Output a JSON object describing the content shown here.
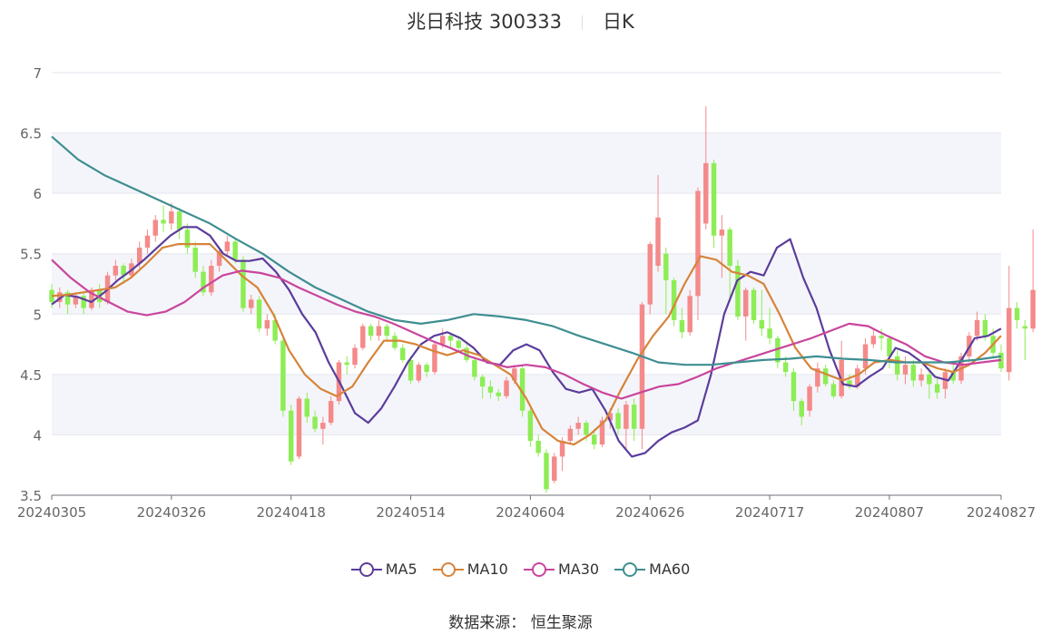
{
  "header": {
    "stock": "兆日科技 300333",
    "period": "日K"
  },
  "source": {
    "label": "数据来源：",
    "value": "恒生聚源"
  },
  "legend": [
    {
      "name": "MA5",
      "color": "#5b3d9c"
    },
    {
      "name": "MA10",
      "color": "#d6843a"
    },
    {
      "name": "MA30",
      "color": "#c9459c"
    },
    {
      "name": "MA60",
      "color": "#3f8e91"
    }
  ],
  "colors": {
    "up": "#f48a8a",
    "down": "#8ded55",
    "grid": "#e3e6ee",
    "band": "#f4f5fa",
    "axis": "#666666"
  },
  "chart_data": {
    "type": "candlestick",
    "ylim": [
      3.5,
      7
    ],
    "yticks": [
      "3.5",
      "4",
      "4.5",
      "5",
      "5.5",
      "6",
      "6.5",
      "7"
    ],
    "x_ticks": [
      {
        "label": "20240305",
        "index": 0
      },
      {
        "label": "20240326",
        "index": 15
      },
      {
        "label": "20240418",
        "index": 30
      },
      {
        "label": "20240514",
        "index": 45
      },
      {
        "label": "20240604",
        "index": 60
      },
      {
        "label": "20240626",
        "index": 75
      },
      {
        "label": "20240717",
        "index": 90
      },
      {
        "label": "20240807",
        "index": 105
      },
      {
        "label": "20240827",
        "index": 119
      }
    ],
    "count": 120,
    "candles": [
      [
        5.2,
        5.1,
        5.25,
        5.05
      ],
      [
        5.1,
        5.18,
        5.22,
        5.05
      ],
      [
        5.18,
        5.08,
        5.2,
        5.0
      ],
      [
        5.08,
        5.15,
        5.18,
        5.05
      ],
      [
        5.15,
        5.05,
        5.18,
        5.0
      ],
      [
        5.05,
        5.2,
        5.22,
        5.03
      ],
      [
        5.2,
        5.1,
        5.25,
        5.05
      ],
      [
        5.1,
        5.32,
        5.35,
        5.08
      ],
      [
        5.32,
        5.4,
        5.45,
        5.28
      ],
      [
        5.4,
        5.32,
        5.42,
        5.25
      ],
      [
        5.32,
        5.42,
        5.46,
        5.3
      ],
      [
        5.42,
        5.55,
        5.6,
        5.38
      ],
      [
        5.55,
        5.65,
        5.7,
        5.5
      ],
      [
        5.65,
        5.78,
        5.82,
        5.6
      ],
      [
        5.78,
        5.75,
        5.9,
        5.68
      ],
      [
        5.75,
        5.85,
        5.92,
        5.7
      ],
      [
        5.85,
        5.7,
        5.88,
        5.62
      ],
      [
        5.7,
        5.55,
        5.75,
        5.5
      ],
      [
        5.55,
        5.35,
        5.6,
        5.3
      ],
      [
        5.35,
        5.18,
        5.4,
        5.15
      ],
      [
        5.18,
        5.4,
        5.45,
        5.15
      ],
      [
        5.4,
        5.52,
        5.56,
        5.35
      ],
      [
        5.52,
        5.6,
        5.65,
        5.48
      ],
      [
        5.6,
        5.45,
        5.62,
        5.42
      ],
      [
        5.45,
        5.05,
        5.48,
        5.02
      ],
      [
        5.05,
        5.12,
        5.16,
        5.0
      ],
      [
        5.12,
        4.88,
        5.15,
        4.85
      ],
      [
        4.88,
        4.95,
        5.0,
        4.82
      ],
      [
        4.95,
        4.78,
        5.0,
        4.75
      ],
      [
        4.78,
        4.2,
        4.82,
        4.15
      ],
      [
        4.2,
        3.78,
        4.25,
        3.75
      ],
      [
        3.82,
        4.3,
        4.32,
        3.8
      ],
      [
        4.3,
        4.15,
        4.35,
        4.1
      ],
      [
        4.15,
        4.05,
        4.2,
        4.02
      ],
      [
        4.05,
        4.1,
        4.15,
        3.92
      ],
      [
        4.1,
        4.28,
        4.32,
        4.08
      ],
      [
        4.28,
        4.6,
        4.62,
        4.25
      ],
      [
        4.6,
        4.58,
        4.65,
        4.5
      ],
      [
        4.58,
        4.72,
        4.75,
        4.55
      ],
      [
        4.72,
        4.9,
        4.92,
        4.7
      ],
      [
        4.9,
        4.82,
        4.92,
        4.78
      ],
      [
        4.82,
        4.9,
        4.95,
        4.78
      ],
      [
        4.9,
        4.82,
        4.92,
        4.78
      ],
      [
        4.82,
        4.72,
        4.85,
        4.7
      ],
      [
        4.72,
        4.62,
        4.75,
        4.6
      ],
      [
        4.62,
        4.45,
        4.65,
        4.42
      ],
      [
        4.45,
        4.58,
        4.6,
        4.43
      ],
      [
        4.58,
        4.52,
        4.6,
        4.48
      ],
      [
        4.52,
        4.75,
        4.78,
        4.5
      ],
      [
        4.75,
        4.82,
        4.88,
        4.72
      ],
      [
        4.82,
        4.78,
        4.85,
        4.72
      ],
      [
        4.78,
        4.72,
        4.82,
        4.68
      ],
      [
        4.72,
        4.62,
        4.75,
        4.6
      ],
      [
        4.62,
        4.48,
        4.65,
        4.45
      ],
      [
        4.48,
        4.4,
        4.5,
        4.3
      ],
      [
        4.4,
        4.35,
        4.45,
        4.3
      ],
      [
        4.35,
        4.32,
        4.38,
        4.28
      ],
      [
        4.32,
        4.45,
        4.48,
        4.3
      ],
      [
        4.45,
        4.55,
        4.58,
        4.42
      ],
      [
        4.55,
        4.2,
        4.58,
        4.15
      ],
      [
        4.2,
        3.95,
        4.22,
        3.9
      ],
      [
        3.95,
        3.85,
        4.0,
        3.82
      ],
      [
        3.85,
        3.55,
        3.88,
        3.52
      ],
      [
        3.62,
        3.82,
        3.85,
        3.6
      ],
      [
        3.82,
        3.95,
        3.98,
        3.7
      ],
      [
        3.95,
        4.05,
        4.08,
        3.92
      ],
      [
        4.05,
        4.1,
        4.15,
        4.0
      ],
      [
        4.1,
        4.0,
        4.12,
        3.95
      ],
      [
        4.0,
        3.92,
        4.05,
        3.88
      ],
      [
        3.92,
        4.12,
        4.15,
        3.9
      ],
      [
        4.12,
        4.18,
        4.22,
        4.05
      ],
      [
        4.18,
        4.05,
        4.22,
        4.0
      ],
      [
        4.05,
        4.25,
        4.28,
        3.88
      ],
      [
        4.25,
        4.05,
        4.3,
        3.95
      ],
      [
        4.05,
        5.08,
        5.1,
        3.88
      ],
      [
        5.08,
        5.58,
        5.6,
        5.0
      ],
      [
        5.4,
        5.8,
        6.15,
        5.35
      ],
      [
        5.5,
        5.28,
        5.55,
        5.0
      ],
      [
        5.28,
        4.95,
        5.3,
        4.9
      ],
      [
        4.95,
        4.85,
        5.05,
        4.8
      ],
      [
        4.85,
        5.15,
        5.2,
        4.82
      ],
      [
        5.15,
        6.02,
        6.05,
        4.95
      ],
      [
        5.75,
        6.25,
        6.72,
        5.7
      ],
      [
        6.25,
        5.65,
        6.28,
        5.55
      ],
      [
        5.65,
        5.7,
        5.82,
        5.3
      ],
      [
        5.7,
        5.4,
        5.72,
        5.1
      ],
      [
        5.4,
        4.98,
        5.45,
        4.95
      ],
      [
        4.98,
        5.2,
        5.22,
        4.78
      ],
      [
        5.2,
        4.95,
        5.22,
        4.92
      ],
      [
        4.95,
        4.88,
        5.2,
        4.82
      ],
      [
        4.88,
        4.8,
        5.05,
        4.75
      ],
      [
        4.8,
        4.6,
        4.82,
        4.55
      ],
      [
        4.6,
        4.52,
        4.65,
        4.48
      ],
      [
        4.52,
        4.28,
        4.55,
        4.2
      ],
      [
        4.28,
        4.15,
        4.3,
        4.08
      ],
      [
        4.2,
        4.4,
        4.42,
        4.15
      ],
      [
        4.4,
        4.55,
        4.6,
        4.35
      ],
      [
        4.55,
        4.42,
        4.58,
        4.4
      ],
      [
        4.42,
        4.32,
        4.45,
        4.3
      ],
      [
        4.32,
        4.62,
        4.78,
        4.3
      ],
      [
        4.45,
        4.4,
        4.5,
        4.38
      ],
      [
        4.4,
        4.55,
        4.58,
        4.38
      ],
      [
        4.55,
        4.75,
        4.8,
        4.5
      ],
      [
        4.75,
        4.82,
        4.88,
        4.72
      ],
      [
        4.82,
        4.8,
        4.88,
        4.7
      ],
      [
        4.8,
        4.65,
        4.82,
        4.55
      ],
      [
        4.65,
        4.5,
        4.7,
        4.45
      ],
      [
        4.5,
        4.58,
        4.65,
        4.42
      ],
      [
        4.58,
        4.45,
        4.62,
        4.4
      ],
      [
        4.45,
        4.5,
        4.55,
        4.4
      ],
      [
        4.5,
        4.42,
        4.55,
        4.3
      ],
      [
        4.42,
        4.35,
        4.48,
        4.3
      ],
      [
        4.38,
        4.52,
        4.55,
        4.3
      ],
      [
        4.52,
        4.45,
        4.58,
        4.42
      ],
      [
        4.45,
        4.65,
        4.68,
        4.42
      ],
      [
        4.65,
        4.82,
        4.85,
        4.6
      ],
      [
        4.82,
        4.95,
        5.02,
        4.78
      ],
      [
        4.95,
        4.82,
        5.0,
        4.78
      ],
      [
        4.82,
        4.68,
        4.88,
        4.65
      ],
      [
        4.68,
        4.55,
        4.75,
        4.52
      ],
      [
        4.52,
        5.05,
        5.4,
        4.45
      ],
      [
        5.05,
        4.95,
        5.1,
        4.88
      ],
      [
        4.9,
        4.88,
        4.95,
        4.62
      ],
      [
        4.88,
        5.2,
        5.7,
        4.85
      ]
    ],
    "series": [
      {
        "name": "MA5",
        "values": [
          5.08,
          5.16,
          5.14,
          5.1,
          5.18,
          5.28,
          5.36,
          5.45,
          5.55,
          5.65,
          5.72,
          5.72,
          5.65,
          5.5,
          5.44,
          5.44,
          5.46,
          5.35,
          5.2,
          5.0,
          4.85,
          4.6,
          4.4,
          4.18,
          4.1,
          4.22,
          4.4,
          4.6,
          4.75,
          4.82,
          4.85,
          4.8,
          4.72,
          4.6,
          4.58,
          4.7,
          4.75,
          4.7,
          4.52,
          4.38,
          4.35,
          4.38,
          4.2,
          3.95,
          3.82,
          3.85,
          3.95,
          4.02,
          4.06,
          4.12,
          4.5,
          5.0,
          5.28,
          5.35,
          5.32,
          5.55,
          5.62,
          5.3,
          5.05,
          4.7,
          4.42,
          4.4,
          4.48,
          4.55,
          4.72,
          4.68,
          4.6,
          4.48,
          4.45,
          4.62,
          4.8,
          4.82,
          4.88
        ]
      },
      {
        "name": "MA10",
        "values": [
          5.15,
          5.16,
          5.18,
          5.2,
          5.22,
          5.3,
          5.42,
          5.55,
          5.58,
          5.58,
          5.58,
          5.45,
          5.32,
          5.22,
          5.0,
          4.7,
          4.5,
          4.38,
          4.32,
          4.4,
          4.6,
          4.78,
          4.78,
          4.75,
          4.7,
          4.66,
          4.7,
          4.66,
          4.58,
          4.5,
          4.3,
          4.05,
          3.95,
          3.92,
          4.0,
          4.12,
          4.38,
          4.62,
          4.82,
          4.98,
          5.25,
          5.48,
          5.45,
          5.35,
          5.32,
          5.25,
          5.0,
          4.72,
          4.55,
          4.5,
          4.45,
          4.5,
          4.6,
          4.62,
          4.6,
          4.6,
          4.55,
          4.52,
          4.58,
          4.68,
          4.82
        ]
      },
      {
        "name": "MA30",
        "values": [
          5.45,
          5.3,
          5.18,
          5.1,
          5.02,
          4.99,
          5.02,
          5.1,
          5.22,
          5.32,
          5.36,
          5.34,
          5.3,
          5.22,
          5.15,
          5.08,
          5.02,
          4.98,
          4.92,
          4.85,
          4.78,
          4.72,
          4.65,
          4.6,
          4.56,
          4.58,
          4.56,
          4.5,
          4.42,
          4.35,
          4.3,
          4.35,
          4.4,
          4.42,
          4.48,
          4.55,
          4.6,
          4.65,
          4.7,
          4.75,
          4.8,
          4.86,
          4.92,
          4.9,
          4.82,
          4.75,
          4.65,
          4.6,
          4.58,
          4.6,
          4.62
        ]
      },
      {
        "name": "MA60",
        "values": [
          6.47,
          6.28,
          6.15,
          6.05,
          5.95,
          5.85,
          5.75,
          5.62,
          5.5,
          5.35,
          5.22,
          5.12,
          5.02,
          4.95,
          4.92,
          4.95,
          5.0,
          4.98,
          4.95,
          4.9,
          4.82,
          4.75,
          4.68,
          4.6,
          4.58,
          4.58,
          4.6,
          4.62,
          4.63,
          4.65,
          4.63,
          4.62,
          4.6,
          4.6,
          4.6,
          4.62,
          4.65
        ]
      }
    ]
  }
}
